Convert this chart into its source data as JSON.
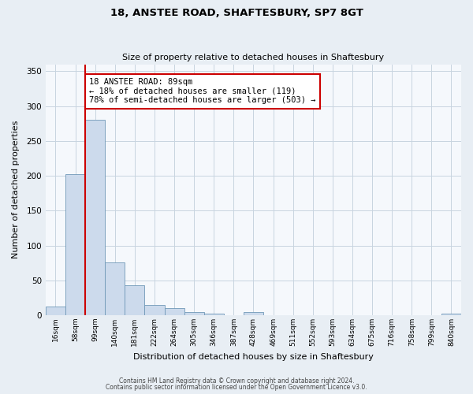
{
  "title_line1": "18, ANSTEE ROAD, SHAFTESBURY, SP7 8GT",
  "title_line2": "Size of property relative to detached houses in Shaftesbury",
  "xlabel": "Distribution of detached houses by size in Shaftesbury",
  "ylabel": "Number of detached properties",
  "bar_labels": [
    "16sqm",
    "58sqm",
    "99sqm",
    "140sqm",
    "181sqm",
    "222sqm",
    "264sqm",
    "305sqm",
    "346sqm",
    "387sqm",
    "428sqm",
    "469sqm",
    "511sqm",
    "552sqm",
    "593sqm",
    "634sqm",
    "675sqm",
    "716sqm",
    "758sqm",
    "799sqm",
    "840sqm"
  ],
  "bar_values": [
    13,
    202,
    280,
    76,
    43,
    15,
    10,
    5,
    2,
    0,
    5,
    0,
    0,
    0,
    0,
    0,
    0,
    0,
    0,
    0,
    2
  ],
  "bar_color": "#ccdaec",
  "bar_edge_color": "#7098b8",
  "vline_color": "#cc0000",
  "annotation_text": "18 ANSTEE ROAD: 89sqm\n← 18% of detached houses are smaller (119)\n78% of semi-detached houses are larger (503) →",
  "annotation_box_color": "#ffffff",
  "annotation_box_edge_color": "#cc0000",
  "ylim": [
    0,
    360
  ],
  "yticks": [
    0,
    50,
    100,
    150,
    200,
    250,
    300,
    350
  ],
  "footer_line1": "Contains HM Land Registry data © Crown copyright and database right 2024.",
  "footer_line2": "Contains public sector information licensed under the Open Government Licence v3.0.",
  "background_color": "#e8eef4",
  "plot_bg_color": "#f5f8fc",
  "grid_color": "#c8d4e0"
}
